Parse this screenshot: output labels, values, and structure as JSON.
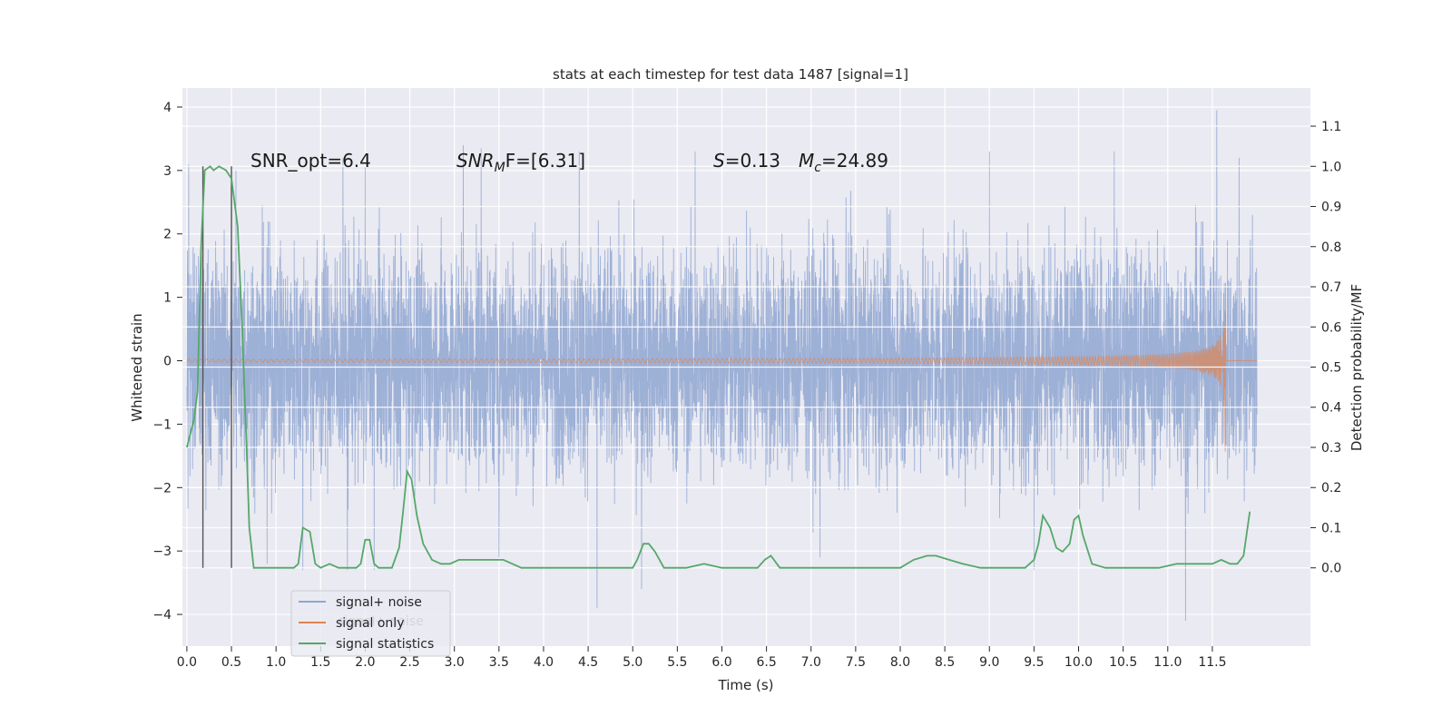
{
  "chart_data": {
    "type": "line",
    "title": "stats at each timestep for test data 1487 [signal=1]",
    "xlabel": "Time (s)",
    "ylabel_left": "Whitened strain",
    "ylabel_right": "Detection probability/MF",
    "xlim": [
      -0.05,
      12.6
    ],
    "ylim_left": [
      -4.5,
      4.3
    ],
    "ylim_right": [
      -0.195,
      1.195
    ],
    "x_ticks": [
      0.0,
      0.5,
      1.0,
      1.5,
      2.0,
      2.5,
      3.0,
      3.5,
      4.0,
      4.5,
      5.0,
      5.5,
      6.0,
      6.5,
      7.0,
      7.5,
      8.0,
      8.5,
      9.0,
      9.5,
      10.0,
      10.5,
      11.0,
      11.5
    ],
    "x_tick_labels": [
      "0.0",
      "0.5",
      "1.0",
      "1.5",
      "2.0",
      "2.5",
      "3.0",
      "3.5",
      "4.0",
      "4.5",
      "5.0",
      "5.5",
      "6.0",
      "6.5",
      "7.0",
      "7.5",
      "8.0",
      "8.5",
      "9.0",
      "9.5",
      "10.0",
      "10.5",
      "11.0",
      "11.5"
    ],
    "y_left_ticks": [
      -4,
      -3,
      -2,
      -1,
      0,
      1,
      2,
      3,
      4
    ],
    "y_left_tick_labels": [
      "−4",
      "−3",
      "−2",
      "−1",
      "0",
      "1",
      "2",
      "3",
      "4"
    ],
    "y_right_ticks": [
      0.0,
      0.1,
      0.2,
      0.3,
      0.4,
      0.5,
      0.6,
      0.7,
      0.8,
      0.9,
      1.0,
      1.1
    ],
    "y_right_tick_labels": [
      "0.0",
      "0.1",
      "0.2",
      "0.3",
      "0.4",
      "0.5",
      "0.6",
      "0.7",
      "0.8",
      "0.9",
      "1.0",
      "1.1"
    ],
    "grid": true,
    "legend_position": "lower-left",
    "annotations": {
      "snr_opt": "SNR_opt=6.4",
      "snr_mf_sym": "SNR",
      "snr_mf_sub": "M",
      "snr_mf_rest": "F=[6.31]",
      "s_sym": "S",
      "s_rest": "=0.13",
      "mc_sym": "M",
      "mc_sub": "c",
      "mc_rest": "=24.89"
    },
    "vertical_markers_x": [
      0.18,
      0.5
    ],
    "noise_series": {
      "name": "signal+ noise",
      "color": "#8fa6d1",
      "x_start": 0.0,
      "x_end": 12.0,
      "typical_range": [
        -2.0,
        2.0
      ],
      "extremes": [
        {
          "x": 0.02,
          "y": 3.1
        },
        {
          "x": 0.55,
          "y": 3.0
        },
        {
          "x": 0.9,
          "y": -3.2
        },
        {
          "x": 1.3,
          "y": -3.3
        },
        {
          "x": 1.75,
          "y": 3.2
        },
        {
          "x": 1.8,
          "y": -3.3
        },
        {
          "x": 2.0,
          "y": 3.05
        },
        {
          "x": 2.1,
          "y": -3.3
        },
        {
          "x": 3.1,
          "y": 3.4
        },
        {
          "x": 3.3,
          "y": 3.35
        },
        {
          "x": 3.5,
          "y": -3.1
        },
        {
          "x": 4.4,
          "y": 3.3
        },
        {
          "x": 4.6,
          "y": -3.9
        },
        {
          "x": 5.1,
          "y": -3.6
        },
        {
          "x": 5.7,
          "y": 3.3
        },
        {
          "x": 7.1,
          "y": -3.1
        },
        {
          "x": 9.0,
          "y": 3.3
        },
        {
          "x": 9.5,
          "y": -3.3
        },
        {
          "x": 10.4,
          "y": 3.3
        },
        {
          "x": 11.2,
          "y": -4.1
        },
        {
          "x": 11.55,
          "y": 3.95
        },
        {
          "x": 11.8,
          "y": 3.2
        },
        {
          "x": 11.95,
          "y": 2.3
        }
      ]
    },
    "signal_series": {
      "name": "signal only",
      "color": "#dd8452",
      "chirp_end_x": 11.65,
      "max_amplitude": 1.5
    },
    "stat_series": {
      "name": "signal statistics",
      "color": "#55a868",
      "x": [
        0.0,
        0.08,
        0.12,
        0.16,
        0.2,
        0.26,
        0.3,
        0.36,
        0.44,
        0.5,
        0.57,
        0.62,
        0.67,
        0.7,
        0.75,
        0.8,
        1.0,
        1.2,
        1.25,
        1.3,
        1.38,
        1.44,
        1.5,
        1.6,
        1.7,
        1.78,
        1.85,
        1.9,
        1.95,
        2.0,
        2.05,
        2.1,
        2.15,
        2.2,
        2.3,
        2.38,
        2.42,
        2.47,
        2.52,
        2.58,
        2.65,
        2.75,
        2.85,
        2.95,
        3.05,
        3.15,
        3.25,
        3.35,
        3.45,
        3.55,
        3.65,
        3.75,
        3.85,
        4.0,
        4.4,
        4.7,
        4.9,
        5.0,
        5.05,
        5.12,
        5.18,
        5.25,
        5.35,
        5.45,
        5.6,
        5.8,
        6.0,
        6.2,
        6.4,
        6.48,
        6.55,
        6.65,
        6.8,
        7.0,
        7.2,
        7.5,
        7.7,
        7.85,
        8.0,
        8.15,
        8.3,
        8.4,
        8.55,
        8.7,
        8.9,
        9.2,
        9.4,
        9.5,
        9.55,
        9.6,
        9.68,
        9.75,
        9.82,
        9.9,
        9.95,
        10.0,
        10.05,
        10.15,
        10.3,
        10.6,
        10.9,
        11.1,
        11.3,
        11.5,
        11.6,
        11.7,
        11.78,
        11.85,
        11.92
      ],
      "y": [
        0.3,
        0.37,
        0.44,
        0.8,
        0.99,
        1.0,
        0.99,
        1.0,
        0.99,
        0.97,
        0.85,
        0.6,
        0.3,
        0.1,
        0.0,
        0.0,
        0.0,
        0.0,
        0.01,
        0.1,
        0.09,
        0.01,
        0.0,
        0.01,
        0.0,
        0.0,
        0.0,
        0.0,
        0.01,
        0.07,
        0.07,
        0.01,
        0.0,
        0.0,
        0.0,
        0.05,
        0.13,
        0.24,
        0.22,
        0.13,
        0.06,
        0.02,
        0.01,
        0.01,
        0.02,
        0.02,
        0.02,
        0.02,
        0.02,
        0.02,
        0.01,
        0.0,
        0.0,
        0.0,
        0.0,
        0.0,
        0.0,
        0.0,
        0.02,
        0.06,
        0.06,
        0.04,
        0.0,
        0.0,
        0.0,
        0.01,
        0.0,
        0.0,
        0.0,
        0.02,
        0.03,
        0.0,
        0.0,
        0.0,
        0.0,
        0.0,
        0.0,
        0.0,
        0.0,
        0.02,
        0.03,
        0.03,
        0.02,
        0.01,
        0.0,
        0.0,
        0.0,
        0.02,
        0.06,
        0.13,
        0.1,
        0.05,
        0.04,
        0.06,
        0.12,
        0.13,
        0.08,
        0.01,
        0.0,
        0.0,
        0.0,
        0.01,
        0.01,
        0.01,
        0.02,
        0.01,
        0.01,
        0.03,
        0.14
      ]
    },
    "legend": [
      {
        "label": "signal+ noise",
        "color": "#8fa6d1"
      },
      {
        "label": "signal only",
        "color": "#dd8452"
      },
      {
        "label": "signal statistics",
        "color": "#55a868"
      }
    ],
    "legend_ghost_text": "signal+ noise"
  }
}
